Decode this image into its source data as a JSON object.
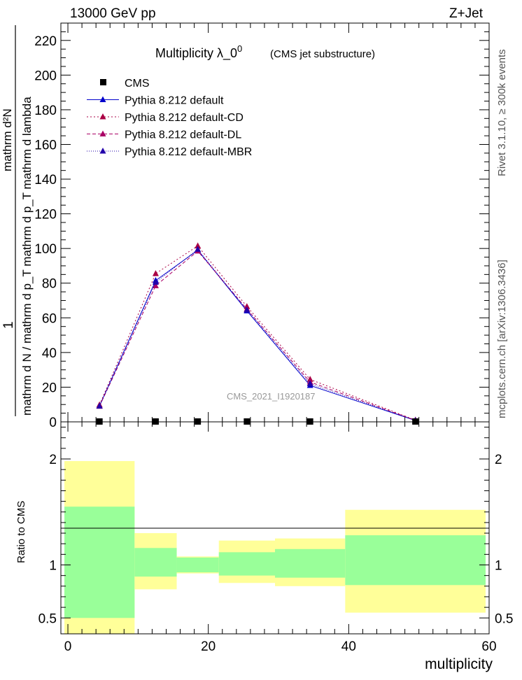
{
  "header": {
    "left": "13000 GeV pp",
    "right": "Z+Jet"
  },
  "side_labels": {
    "rivet": "Rivet 3.1.10, ≥ 300k events",
    "mcplots": "mcplots.cern.ch [arXiv:1306.3436]"
  },
  "chart_data": {
    "type": "line",
    "title": "Multiplicity  λ_0",
    "title_superscript": "0",
    "subtitle": "(CMS jet substructure)",
    "watermark": "CMS_2021_I1920187",
    "ylabel_numerator": "1",
    "ylabel_denominator": "mathrm d N / mathrm d p_T mathrm d p_T mathrm d lambda",
    "ylabel_numerator2": "mathrm d²N",
    "xlabel": "multiplicity",
    "xlim": [
      -1,
      60
    ],
    "ylim": [
      0,
      230
    ],
    "yticks": [
      0,
      20,
      40,
      60,
      80,
      100,
      120,
      140,
      160,
      180,
      200,
      220
    ],
    "xticks": [
      0,
      20,
      40,
      60
    ],
    "bins": [
      [
        -0.5,
        9.5
      ],
      [
        9.5,
        15.5
      ],
      [
        15.5,
        21.5
      ],
      [
        21.5,
        29.5
      ],
      [
        29.5,
        39.5
      ],
      [
        39.5,
        59.5
      ]
    ],
    "x": [
      4.5,
      12.5,
      18.5,
      25.5,
      34.5,
      49.5
    ],
    "data": {
      "name": "CMS",
      "color": "#000000",
      "values": [
        0,
        0,
        0,
        0,
        0,
        0
      ]
    },
    "series": [
      {
        "name": "Pythia 8.212 default",
        "color": "#0000cc",
        "dash": "",
        "values": [
          9.2,
          81.5,
          99.0,
          64.0,
          21.0,
          0.8
        ]
      },
      {
        "name": "Pythia 8.212 default-CD",
        "color": "#aa0044",
        "dash": "2,3",
        "values": [
          9.8,
          85.5,
          101.5,
          66.5,
          24.5,
          1.0
        ]
      },
      {
        "name": "Pythia 8.212 default-DL",
        "color": "#aa0066",
        "dash": "5,3",
        "values": [
          9.0,
          78.5,
          98.5,
          65.0,
          23.0,
          0.9
        ]
      },
      {
        "name": "Pythia 8.212 default-MBR",
        "color": "#2200aa",
        "dash": "1,2",
        "values": [
          9.1,
          80.5,
          99.5,
          64.5,
          22.0,
          0.8
        ]
      }
    ],
    "ratio": {
      "ylabel": "Ratio to CMS",
      "ylim": [
        0.35,
        2.35
      ],
      "yticks": [
        0.5,
        1,
        2
      ],
      "inner_band": [
        [
          0.5,
          1.55
        ],
        [
          0.89,
          1.16
        ],
        [
          0.93,
          1.07
        ],
        [
          0.9,
          1.12
        ],
        [
          0.88,
          1.15
        ],
        [
          0.81,
          1.28
        ]
      ],
      "outer_band": [
        [
          0.35,
          1.98
        ],
        [
          0.77,
          1.3
        ],
        [
          0.92,
          1.08
        ],
        [
          0.83,
          1.23
        ],
        [
          0.8,
          1.25
        ],
        [
          0.55,
          1.52
        ]
      ],
      "band_inner_color": "#99ff99",
      "band_outer_color": "#ffff99"
    }
  }
}
